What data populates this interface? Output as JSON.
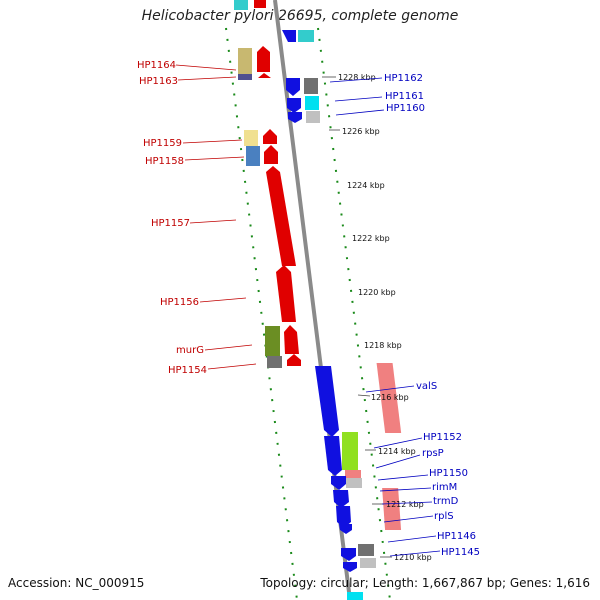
{
  "title": "Helicobacter pylori 26695, complete genome",
  "footer": {
    "accession": "Accession: NC_000915",
    "topology": "Topology: circular; Length: 1,667,867 bp; Genes: 1,616"
  },
  "ticks": [
    "1228 kbp",
    "1226 kbp",
    "1224 kbp",
    "1222 kbp",
    "1220 kbp",
    "1218 kbp",
    "1216 kbp",
    "1214 kbp",
    "1212 kbp",
    "1210 kbp"
  ],
  "left_labels": [
    "HP1164",
    "HP1163",
    "HP1159",
    "HP1158",
    "HP1157",
    "HP1156",
    "murG",
    "HP1154"
  ],
  "right_labels": [
    "HP1162",
    "HP1161",
    "HP1160",
    "valS",
    "HP1152",
    "rpsP",
    "HP1150",
    "rimM",
    "trmD",
    "rplS",
    "HP1146",
    "HP1145"
  ],
  "colors": {
    "forward_strand": "#e00000",
    "reverse_strand": "#1010e0",
    "axis": "#8a8a8a",
    "dotted_track": "#1a8a1a",
    "left_label": "#c00000",
    "right_label": "#0000c0"
  }
}
